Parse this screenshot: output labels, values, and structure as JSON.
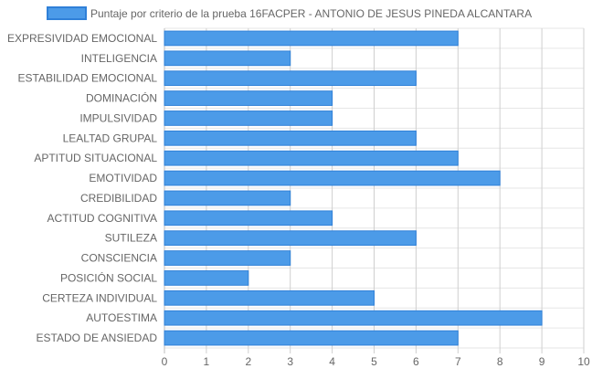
{
  "chart_data": {
    "type": "bar",
    "orientation": "horizontal",
    "legend_position": "top",
    "grid": true,
    "series": [
      {
        "name": "Puntaje por criterio de la prueba 16FACPER - ANTONIO DE JESUS PINEDA ALCANTARA",
        "color": "#4c9be8",
        "border_color": "#2f80d8",
        "values": [
          7,
          3,
          6,
          4,
          4,
          6,
          7,
          8,
          3,
          4,
          6,
          3,
          2,
          5,
          9,
          7
        ]
      }
    ],
    "categories": [
      "EXPRESIVIDAD EMOCIONAL",
      "INTELIGENCIA",
      "ESTABILIDAD EMOCIONAL",
      "DOMINACIÓN",
      "IMPULSIVIDAD",
      "LEALTAD GRUPAL",
      "APTITUD SITUACIONAL",
      "EMOTIVIDAD",
      "CREDIBILIDAD",
      "ACTITUD COGNITIVA",
      "SUTILEZA",
      "CONSCIENCIA",
      "POSICIÓN SOCIAL",
      "CERTEZA INDIVIDUAL",
      "AUTOESTIMA",
      "ESTADO DE ANSIEDAD"
    ],
    "xlim": [
      0,
      10
    ],
    "x_ticks": [
      "0",
      "1",
      "2",
      "3",
      "4",
      "5",
      "6",
      "7",
      "8",
      "9",
      "10"
    ]
  }
}
